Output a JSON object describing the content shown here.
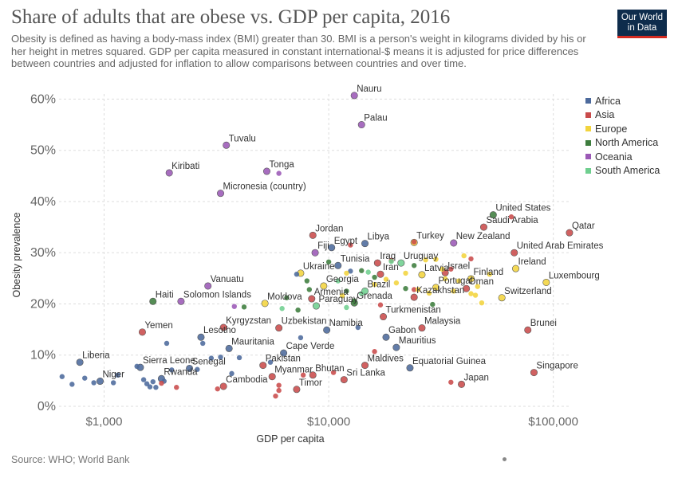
{
  "header": {
    "title": "Share of adults that are obese vs. GDP per capita, 2016",
    "subtitle": "Obesity is defined as having a body-mass index (BMI) greater than 30. BMI is a person's weight in kilograms divided by his or her height in metres squared. GDP per capita measured in constant international-$ means it is adjusted for price differences between countries and adjusted for inflation to allow comparisons between countries and over time.",
    "logo_line1": "Our World",
    "logo_line2": "in Data"
  },
  "footer": {
    "source": "Source: WHO; World Bank"
  },
  "colors": {
    "Africa": "#4c6a9c",
    "Asia": "#c94b4b",
    "Europe": "#f2d43e",
    "North America": "#3e7d3e",
    "Oceania": "#9b59b6",
    "South America": "#6fcf8f"
  },
  "chart_data": {
    "type": "scatter",
    "xlabel": "GDP per capita",
    "ylabel": "Obesity prevalence",
    "x_scale": "log",
    "xlim": [
      630,
      120000
    ],
    "ylim": [
      0,
      61
    ],
    "x_ticks": [
      {
        "value": 1000,
        "label": "$1,000"
      },
      {
        "value": 10000,
        "label": "$10,000"
      },
      {
        "value": 100000,
        "label": "$100,000"
      }
    ],
    "y_ticks": [
      {
        "value": 0,
        "label": "0%"
      },
      {
        "value": 10,
        "label": "10%"
      },
      {
        "value": 20,
        "label": "20%"
      },
      {
        "value": 30,
        "label": "30%"
      },
      {
        "value": 40,
        "label": "40%"
      },
      {
        "value": 50,
        "label": "50%"
      },
      {
        "value": 60,
        "label": "60%"
      }
    ],
    "legend": [
      "Africa",
      "Asia",
      "Europe",
      "North America",
      "Oceania",
      "South America"
    ],
    "legend_position": "right",
    "points": [
      {
        "label": "Nauru",
        "region": "Oceania",
        "x": 13000,
        "y": 60.7
      },
      {
        "label": "Palau",
        "region": "Oceania",
        "x": 14000,
        "y": 55
      },
      {
        "label": "Tuvalu",
        "region": "Oceania",
        "x": 3500,
        "y": 51
      },
      {
        "label": "Kiribati",
        "region": "Oceania",
        "x": 1950,
        "y": 45.6
      },
      {
        "label": "Tonga",
        "region": "Oceania",
        "x": 5300,
        "y": 45.9
      },
      {
        "label": "",
        "region": "Oceania",
        "x": 6000,
        "y": 45.5
      },
      {
        "label": "Micronesia (country)",
        "region": "Oceania",
        "x": 3300,
        "y": 41.6
      },
      {
        "label": "United States",
        "region": "North America",
        "x": 54000,
        "y": 37.4
      },
      {
        "label": "Saudi Arabia",
        "region": "Asia",
        "x": 49000,
        "y": 35
      },
      {
        "label": "",
        "region": "Asia",
        "x": 65000,
        "y": 37
      },
      {
        "label": "Qatar",
        "region": "Asia",
        "x": 118000,
        "y": 33.9
      },
      {
        "label": "Jordan",
        "region": "Asia",
        "x": 8500,
        "y": 33.4
      },
      {
        "label": "Libya",
        "region": "Africa",
        "x": 14500,
        "y": 31.8
      },
      {
        "label": "Egypt",
        "region": "Africa",
        "x": 10300,
        "y": 31
      },
      {
        "label": "",
        "region": "Asia",
        "x": 12500,
        "y": 31.5
      },
      {
        "label": "Fiji",
        "region": "Oceania",
        "x": 8700,
        "y": 30
      },
      {
        "label": "Turkey",
        "region": "Europe",
        "x": 24000,
        "y": 32
      },
      {
        "label": "",
        "region": "Asia",
        "x": 24000,
        "y": 32.1
      },
      {
        "label": "New Zealand",
        "region": "Oceania",
        "x": 36000,
        "y": 31.9
      },
      {
        "label": "United Arab Emirates",
        "region": "Asia",
        "x": 67000,
        "y": 30
      },
      {
        "label": "Uruguay",
        "region": "South America",
        "x": 21000,
        "y": 28
      },
      {
        "label": "Israel",
        "region": "Asia",
        "x": 33000,
        "y": 26.1
      },
      {
        "label": "Ireland",
        "region": "Europe",
        "x": 68000,
        "y": 26.9
      },
      {
        "label": "Tunisia",
        "region": "Africa",
        "x": 11000,
        "y": 27.5
      },
      {
        "label": "Ukraine",
        "region": "Europe",
        "x": 7500,
        "y": 26
      },
      {
        "label": "",
        "region": "North America",
        "x": 10000,
        "y": 28.2
      },
      {
        "label": "Iraq",
        "region": "Asia",
        "x": 16500,
        "y": 28
      },
      {
        "label": "Iran",
        "region": "Asia",
        "x": 17000,
        "y": 25.8
      },
      {
        "label": "Latvia",
        "region": "Europe",
        "x": 26000,
        "y": 25.7
      },
      {
        "label": "",
        "region": "Europe",
        "x": 27000,
        "y": 28.6
      },
      {
        "label": "",
        "region": "Europe",
        "x": 30000,
        "y": 28.7
      },
      {
        "label": "",
        "region": "Europe",
        "x": 32000,
        "y": 26.8
      },
      {
        "label": "",
        "region": "Europe",
        "x": 40000,
        "y": 29.4
      },
      {
        "label": "",
        "region": "Europe",
        "x": 22000,
        "y": 26
      },
      {
        "label": "Finland",
        "region": "Europe",
        "x": 43000,
        "y": 24.9
      },
      {
        "label": "Luxembourg",
        "region": "Europe",
        "x": 93000,
        "y": 24.2
      },
      {
        "label": "Georgia",
        "region": "Europe",
        "x": 9500,
        "y": 23.5
      },
      {
        "label": "Brazil",
        "region": "South America",
        "x": 14500,
        "y": 22.5
      },
      {
        "label": "Portugal",
        "region": "Europe",
        "x": 30000,
        "y": 23.2
      },
      {
        "label": "Oman",
        "region": "Asia",
        "x": 41000,
        "y": 23
      },
      {
        "label": "Kazakhstan",
        "region": "Asia",
        "x": 24000,
        "y": 21.3
      },
      {
        "label": "",
        "region": "Europe",
        "x": 43000,
        "y": 22
      },
      {
        "label": "",
        "region": "Europe",
        "x": 45000,
        "y": 21.7
      },
      {
        "label": "Switzerland",
        "region": "Europe",
        "x": 59000,
        "y": 21.2
      },
      {
        "label": "Armenia",
        "region": "Asia",
        "x": 8400,
        "y": 21
      },
      {
        "label": "",
        "region": "North America",
        "x": 8200,
        "y": 22.8
      },
      {
        "label": "Paraguay",
        "region": "South America",
        "x": 8800,
        "y": 19.6
      },
      {
        "label": "Grenada",
        "region": "North America",
        "x": 13000,
        "y": 20.2
      },
      {
        "label": "Moldova",
        "region": "Europe",
        "x": 5200,
        "y": 20.1
      },
      {
        "label": "",
        "region": "North America",
        "x": 6500,
        "y": 21.2
      },
      {
        "label": "",
        "region": "North America",
        "x": 29000,
        "y": 19.9
      },
      {
        "label": "Vanuatu",
        "region": "Oceania",
        "x": 2900,
        "y": 23.5
      },
      {
        "label": "Solomon Islands",
        "region": "Oceania",
        "x": 2200,
        "y": 20.5
      },
      {
        "label": "Haiti",
        "region": "North America",
        "x": 1650,
        "y": 20.5
      },
      {
        "label": "",
        "region": "Oceania",
        "x": 3800,
        "y": 19.5
      },
      {
        "label": "Turkmenistan",
        "region": "Asia",
        "x": 17500,
        "y": 17.5
      },
      {
        "label": "",
        "region": "South America",
        "x": 12000,
        "y": 19.3
      },
      {
        "label": "Kyrgyzstan",
        "region": "Asia",
        "x": 3400,
        "y": 15.4
      },
      {
        "label": "Yemen",
        "region": "Asia",
        "x": 1480,
        "y": 14.5
      },
      {
        "label": "Uzbekistan",
        "region": "Asia",
        "x": 6000,
        "y": 15.3
      },
      {
        "label": "Namibia",
        "region": "Africa",
        "x": 9800,
        "y": 14.9
      },
      {
        "label": "Malaysia",
        "region": "Asia",
        "x": 26000,
        "y": 15.3
      },
      {
        "label": "Brunei",
        "region": "Asia",
        "x": 77000,
        "y": 14.9
      },
      {
        "label": "Lesotho",
        "region": "Africa",
        "x": 2700,
        "y": 13.5
      },
      {
        "label": "Gabon",
        "region": "Africa",
        "x": 18000,
        "y": 13.5
      },
      {
        "label": "Mauritania",
        "region": "Africa",
        "x": 3600,
        "y": 11.3
      },
      {
        "label": "Cape Verde",
        "region": "Africa",
        "x": 6300,
        "y": 10.4
      },
      {
        "label": "Mauritius",
        "region": "Africa",
        "x": 20000,
        "y": 11.5
      },
      {
        "label": "Liberia",
        "region": "Africa",
        "x": 780,
        "y": 8.6
      },
      {
        "label": "Sierra Leone",
        "region": "Africa",
        "x": 1450,
        "y": 7.6
      },
      {
        "label": "Senegal",
        "region": "Africa",
        "x": 2400,
        "y": 7.4
      },
      {
        "label": "Pakistan",
        "region": "Asia",
        "x": 5100,
        "y": 8
      },
      {
        "label": "Maldives",
        "region": "Asia",
        "x": 14500,
        "y": 8
      },
      {
        "label": "Equatorial Guinea",
        "region": "Africa",
        "x": 23000,
        "y": 7.5
      },
      {
        "label": "Singapore",
        "region": "Asia",
        "x": 82000,
        "y": 6.6
      },
      {
        "label": "Myanmar",
        "region": "Asia",
        "x": 5600,
        "y": 5.8
      },
      {
        "label": "Bhutan",
        "region": "Asia",
        "x": 8500,
        "y": 6.1
      },
      {
        "label": "Sri Lanka",
        "region": "Asia",
        "x": 11700,
        "y": 5.2
      },
      {
        "label": "Niger",
        "region": "Africa",
        "x": 960,
        "y": 4.9
      },
      {
        "label": "Rwanda",
        "region": "Africa",
        "x": 1800,
        "y": 5.4
      },
      {
        "label": "Japan",
        "region": "Asia",
        "x": 39000,
        "y": 4.3
      },
      {
        "label": "Cambodia",
        "region": "Asia",
        "x": 3400,
        "y": 3.9
      },
      {
        "label": "Timor",
        "region": "Asia",
        "x": 7200,
        "y": 3.3
      },
      {
        "label": "",
        "region": "Africa",
        "x": 650,
        "y": 5.8
      },
      {
        "label": "",
        "region": "Africa",
        "x": 720,
        "y": 4.3
      },
      {
        "label": "",
        "region": "Africa",
        "x": 820,
        "y": 5.5
      },
      {
        "label": "",
        "region": "Africa",
        "x": 900,
        "y": 4.6
      },
      {
        "label": "",
        "region": "Africa",
        "x": 1100,
        "y": 4.6
      },
      {
        "label": "",
        "region": "Africa",
        "x": 1150,
        "y": 6.1
      },
      {
        "label": "",
        "region": "Africa",
        "x": 1400,
        "y": 7.8
      },
      {
        "label": "",
        "region": "Africa",
        "x": 1500,
        "y": 5.2
      },
      {
        "label": "",
        "region": "Africa",
        "x": 1550,
        "y": 4.4
      },
      {
        "label": "",
        "region": "Africa",
        "x": 1600,
        "y": 3.8
      },
      {
        "label": "",
        "region": "Africa",
        "x": 1650,
        "y": 4.8
      },
      {
        "label": "",
        "region": "Africa",
        "x": 1700,
        "y": 3.7
      },
      {
        "label": "",
        "region": "Africa",
        "x": 1850,
        "y": 4.9
      },
      {
        "label": "",
        "region": "Africa",
        "x": 2000,
        "y": 7.1
      },
      {
        "label": "",
        "region": "Africa",
        "x": 1900,
        "y": 12.3
      },
      {
        "label": "",
        "region": "Africa",
        "x": 2600,
        "y": 7.2
      },
      {
        "label": "",
        "region": "Africa",
        "x": 2750,
        "y": 12.3
      },
      {
        "label": "",
        "region": "Africa",
        "x": 3000,
        "y": 9.4
      },
      {
        "label": "",
        "region": "Africa",
        "x": 3300,
        "y": 9.6
      },
      {
        "label": "",
        "region": "Africa",
        "x": 3700,
        "y": 6.4
      },
      {
        "label": "",
        "region": "Africa",
        "x": 4000,
        "y": 9.5
      },
      {
        "label": "",
        "region": "Africa",
        "x": 5500,
        "y": 8.6
      },
      {
        "label": "",
        "region": "Africa",
        "x": 7500,
        "y": 13.4
      },
      {
        "label": "",
        "region": "Africa",
        "x": 7200,
        "y": 25.8
      },
      {
        "label": "",
        "region": "Africa",
        "x": 12500,
        "y": 26.4
      },
      {
        "label": "",
        "region": "Africa",
        "x": 13500,
        "y": 15.4
      },
      {
        "label": "",
        "region": "Asia",
        "x": 1800,
        "y": 4.5
      },
      {
        "label": "",
        "region": "Asia",
        "x": 2100,
        "y": 3.7
      },
      {
        "label": "",
        "region": "Asia",
        "x": 3200,
        "y": 3.4
      },
      {
        "label": "",
        "region": "Asia",
        "x": 5800,
        "y": 2
      },
      {
        "label": "",
        "region": "Asia",
        "x": 6000,
        "y": 4.1
      },
      {
        "label": "",
        "region": "Asia",
        "x": 6000,
        "y": 3.1
      },
      {
        "label": "",
        "region": "Asia",
        "x": 7700,
        "y": 6.1
      },
      {
        "label": "",
        "region": "Asia",
        "x": 10500,
        "y": 6.6
      },
      {
        "label": "",
        "region": "Asia",
        "x": 16000,
        "y": 10.7
      },
      {
        "label": "",
        "region": "Asia",
        "x": 17000,
        "y": 19.8
      },
      {
        "label": "",
        "region": "Asia",
        "x": 35000,
        "y": 4.7
      },
      {
        "label": "",
        "region": "Asia",
        "x": 24000,
        "y": 22.8
      },
      {
        "label": "",
        "region": "Asia",
        "x": 35000,
        "y": 26.8
      },
      {
        "label": "",
        "region": "Asia",
        "x": 43000,
        "y": 28.8
      },
      {
        "label": "",
        "region": "Asia",
        "x": 19000,
        "y": 28.5
      },
      {
        "label": "",
        "region": "North America",
        "x": 4200,
        "y": 19.4
      },
      {
        "label": "",
        "region": "North America",
        "x": 8000,
        "y": 24.5
      },
      {
        "label": "",
        "region": "North America",
        "x": 12000,
        "y": 22.5
      },
      {
        "label": "",
        "region": "North America",
        "x": 14000,
        "y": 26.5
      },
      {
        "label": "",
        "region": "North America",
        "x": 16000,
        "y": 25.2
      },
      {
        "label": "",
        "region": "North America",
        "x": 22000,
        "y": 23
      },
      {
        "label": "",
        "region": "North America",
        "x": 24000,
        "y": 27.5
      },
      {
        "label": "",
        "region": "North America",
        "x": 7300,
        "y": 18.8
      },
      {
        "label": "",
        "region": "North America",
        "x": 13000,
        "y": 20.6
      },
      {
        "label": "",
        "region": "Europe",
        "x": 12000,
        "y": 26
      },
      {
        "label": "",
        "region": "Europe",
        "x": 16000,
        "y": 23.8
      },
      {
        "label": "",
        "region": "Europe",
        "x": 18000,
        "y": 24.8
      },
      {
        "label": "",
        "region": "Europe",
        "x": 20000,
        "y": 24.1
      },
      {
        "label": "",
        "region": "Europe",
        "x": 25000,
        "y": 22.8
      },
      {
        "label": "",
        "region": "Europe",
        "x": 28000,
        "y": 22.1
      },
      {
        "label": "",
        "region": "Europe",
        "x": 33000,
        "y": 24.9
      },
      {
        "label": "",
        "region": "Europe",
        "x": 36000,
        "y": 22.5
      },
      {
        "label": "",
        "region": "Europe",
        "x": 38000,
        "y": 24.5
      },
      {
        "label": "",
        "region": "Europe",
        "x": 46000,
        "y": 23.4
      },
      {
        "label": "",
        "region": "Europe",
        "x": 48000,
        "y": 20.2
      },
      {
        "label": "",
        "region": "Europe",
        "x": 52000,
        "y": 25.8
      },
      {
        "label": "",
        "region": "Europe",
        "x": 11500,
        "y": 21.6
      },
      {
        "label": "",
        "region": "South America",
        "x": 6200,
        "y": 19.1
      },
      {
        "label": "",
        "region": "South America",
        "x": 11000,
        "y": 24.5
      },
      {
        "label": "",
        "region": "South America",
        "x": 14000,
        "y": 22
      },
      {
        "label": "",
        "region": "South America",
        "x": 15000,
        "y": 26.2
      },
      {
        "label": "",
        "region": "South America",
        "x": 19000,
        "y": 28.3
      }
    ]
  }
}
